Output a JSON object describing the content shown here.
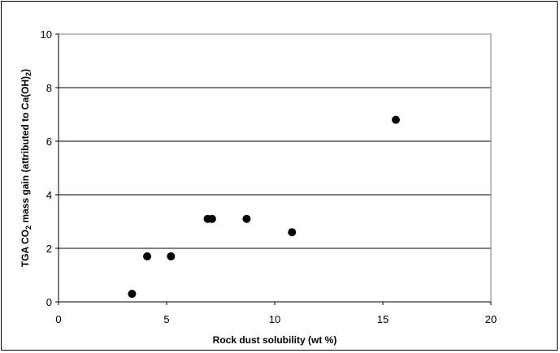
{
  "chart_data": {
    "type": "scatter",
    "title": "",
    "xlabel": "Rock dust solubility (wt %)",
    "ylabel_parts": {
      "pre": "TGA CO",
      "sub1": "2",
      "mid": " mass gain (attributed to Ca(OH)",
      "sub2": "2",
      "post": ")"
    },
    "xlim": [
      0,
      20
    ],
    "ylim": [
      0,
      10
    ],
    "x_ticks": [
      0,
      5,
      10,
      15,
      20
    ],
    "y_ticks": [
      0,
      2,
      4,
      6,
      8,
      10
    ],
    "grid": "horizontal major",
    "legend": "none",
    "marker_color": "#000000",
    "points": [
      {
        "x": 3.4,
        "y": 0.3
      },
      {
        "x": 4.1,
        "y": 1.7
      },
      {
        "x": 5.2,
        "y": 1.7
      },
      {
        "x": 6.9,
        "y": 3.1
      },
      {
        "x": 7.1,
        "y": 3.1
      },
      {
        "x": 8.7,
        "y": 3.1
      },
      {
        "x": 10.8,
        "y": 2.6
      },
      {
        "x": 15.6,
        "y": 6.8
      }
    ]
  }
}
